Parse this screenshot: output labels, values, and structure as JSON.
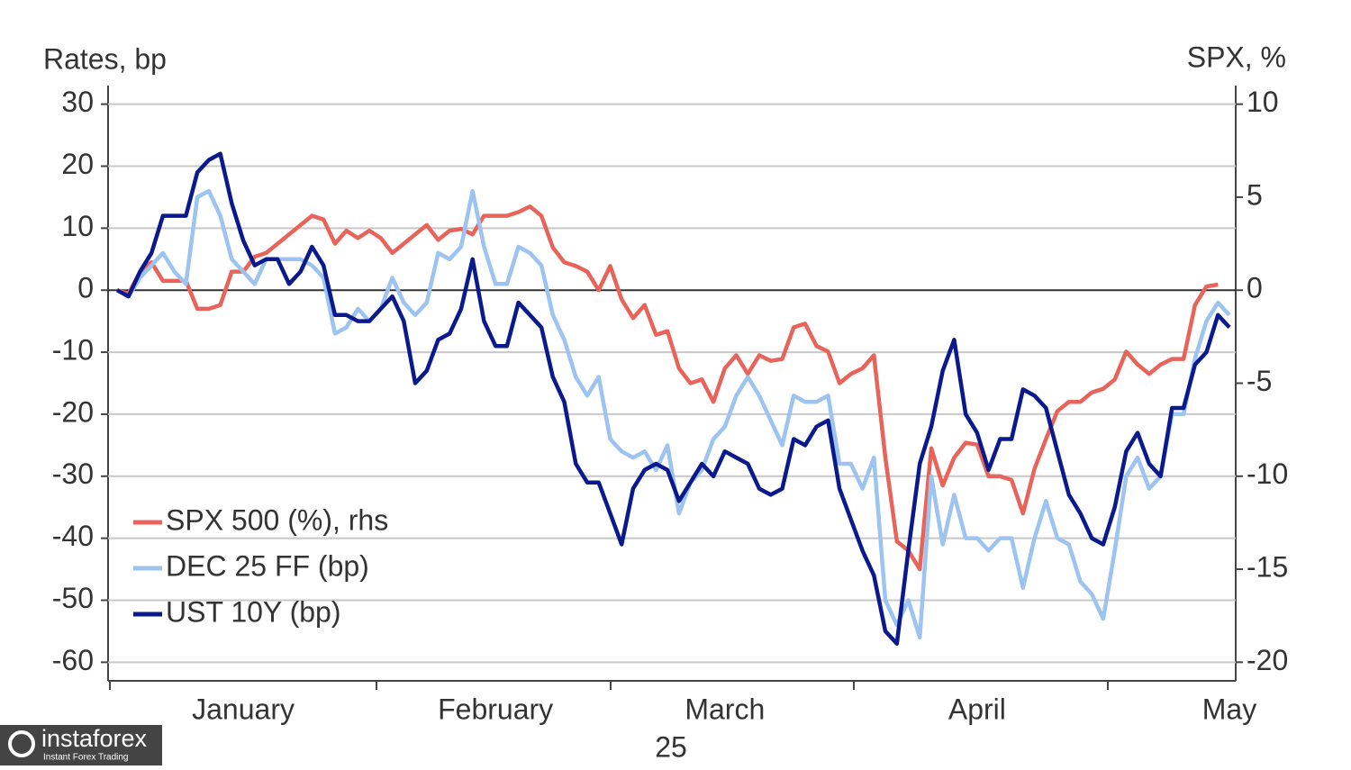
{
  "chart_data": {
    "type": "line",
    "y_axis_title": "Rates, bp",
    "y2_axis_title": "SPX, %",
    "x_axis_sublabel": "25",
    "watermark": "instaforex",
    "watermark_tagline": "Instant Forex Trading",
    "ylim": [
      -63,
      33
    ],
    "yticks": [
      30,
      20,
      10,
      0,
      -10,
      -20,
      -30,
      -40,
      -50,
      -60
    ],
    "y2lim": [
      -21,
      11
    ],
    "y2ticks": [
      10,
      5,
      0,
      -5,
      -10,
      -15,
      -20
    ],
    "grid": true,
    "legend": "lower left",
    "categories": [
      null,
      null,
      null,
      null,
      null,
      null,
      null,
      null,
      null,
      null,
      null,
      "January",
      null,
      null,
      null,
      null,
      null,
      null,
      null,
      null,
      null,
      null,
      null,
      null,
      null,
      null,
      null,
      null,
      null,
      null,
      null,
      null,
      null,
      "February",
      null,
      null,
      null,
      null,
      null,
      null,
      null,
      null,
      null,
      null,
      null,
      null,
      null,
      null,
      null,
      null,
      null,
      null,
      null,
      "March",
      null,
      null,
      null,
      null,
      null,
      null,
      null,
      null,
      null,
      null,
      null,
      null,
      null,
      null,
      null,
      null,
      null,
      null,
      null,
      null,
      null,
      "April",
      null,
      null,
      null,
      null,
      null,
      null,
      null,
      null,
      null,
      null,
      null,
      null,
      null,
      null,
      null,
      null,
      null,
      null,
      null,
      null,
      null,
      "May"
    ],
    "series": [
      {
        "name": "SPX 500 (%), rhs",
        "color": "#e8645a",
        "axis": "y2",
        "values": [
          0,
          -0.2,
          1,
          1.5,
          0.5,
          0.5,
          0.5,
          -1,
          -1,
          -0.8,
          1,
          1,
          1.8,
          2,
          2.5,
          3,
          3.5,
          4,
          3.8,
          2.5,
          3.2,
          2.8,
          3.2,
          2.8,
          2,
          2.5,
          3,
          3.5,
          2.7,
          3.2,
          3.3,
          3,
          4,
          4,
          4,
          4.2,
          4.5,
          4,
          2.3,
          1.5,
          1.3,
          1,
          0,
          1.3,
          -0.5,
          -1.5,
          -0.8,
          -2.4,
          -2.2,
          -4.2,
          -5,
          -4.8,
          -6,
          -4.2,
          -3.5,
          -4.5,
          -3.5,
          -3.8,
          -3.7,
          -2,
          -1.8,
          -3,
          -3.3,
          -5,
          -4.5,
          -4.2,
          -3.5,
          -9,
          -13.5,
          -14,
          -15,
          -8.5,
          -10.5,
          -9,
          -8.2,
          -8.3,
          -10,
          -10,
          -10.2,
          -12,
          -9.6,
          -8,
          -6.5,
          -6,
          -6,
          -5.5,
          -5.3,
          -4.8,
          -3.3,
          -4,
          -4.5,
          -4,
          -3.7,
          -3.7,
          -0.8,
          0.2,
          0.3,
          null
        ]
      },
      {
        "name": "DEC 25 FF (bp)",
        "color": "#9dc3f0",
        "values": [
          0,
          -1,
          2,
          4,
          6,
          3,
          1,
          15,
          16,
          12,
          5,
          3,
          1,
          5,
          5,
          5,
          5,
          4,
          2,
          -7,
          -6,
          -3,
          -5,
          -3,
          2,
          -2,
          -4,
          -2,
          6,
          5,
          7,
          16,
          7,
          1,
          1,
          7,
          6,
          4,
          -4,
          -8,
          -14,
          -17,
          -14,
          -24,
          -26,
          -27,
          -26,
          -29,
          -25,
          -36,
          -31,
          -29,
          -24,
          -22,
          -17,
          -14,
          -17,
          -21,
          -25,
          -17,
          -18,
          -18,
          -17,
          -28,
          -28,
          -32,
          -27,
          -50,
          -54,
          -50,
          -56,
          -30,
          -41,
          -33,
          -40,
          -40,
          -42,
          -40,
          -40,
          -48,
          -40,
          -34,
          -40,
          -41,
          -47,
          -49,
          -53,
          -42,
          -30,
          -27,
          -32,
          -30,
          -20,
          -20,
          -11,
          -5,
          -2,
          -4
        ]
      },
      {
        "name": "UST 10Y (bp)",
        "color": "#0a1a8c",
        "values": [
          0,
          -1,
          3,
          6,
          12,
          12,
          12,
          19,
          21,
          22,
          14,
          8,
          4,
          5,
          5,
          1,
          3,
          7,
          4,
          -4,
          -4,
          -5,
          -5,
          -3,
          -1,
          -5,
          -15,
          -13,
          -8,
          -7,
          -3,
          5,
          -5,
          -9,
          -9,
          -2,
          -4,
          -6,
          -14,
          -18,
          -28,
          -31,
          -31,
          -36,
          -41,
          -32,
          -29,
          -28,
          -29,
          -34,
          -31,
          -28,
          -30,
          -26,
          -27,
          -28,
          -32,
          -33,
          -32,
          -24,
          -25,
          -22,
          -21,
          -32,
          -37,
          -42,
          -46,
          -55,
          -57,
          -42,
          -28,
          -22,
          -13,
          -8,
          -20,
          -23,
          -29,
          -24,
          -24,
          -16,
          -17,
          -19,
          -26,
          -33,
          -36,
          -40,
          -41,
          -35,
          -26,
          -23,
          -28,
          -30,
          -19,
          -19,
          -12,
          -10,
          -4,
          -6
        ]
      }
    ]
  }
}
